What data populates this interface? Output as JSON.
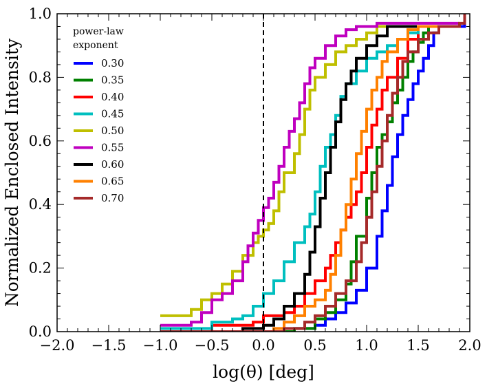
{
  "chart_data": {
    "type": "line",
    "title": "",
    "xlabel": "log(θ) [deg]",
    "ylabel": "Normalized Enclosed Intensity",
    "xlim": [
      -2.0,
      2.0
    ],
    "ylim": [
      0.0,
      1.0
    ],
    "xticks": [
      -2.0,
      -1.5,
      -1.0,
      -0.5,
      0.0,
      0.5,
      1.0,
      1.5,
      2.0
    ],
    "xtick_labels": [
      "−2.0",
      "−1.5",
      "−1.0",
      "−0.5",
      "0.0",
      "0.5",
      "1.0",
      "1.5",
      "2.0"
    ],
    "yticks": [
      0.0,
      0.2,
      0.4,
      0.6,
      0.8,
      1.0
    ],
    "ytick_labels": [
      "0.0",
      "0.2",
      "0.4",
      "0.6",
      "0.8",
      "1.0"
    ],
    "grid": false,
    "reference_line": {
      "x": 0.0,
      "style": "dashed",
      "color": "#000000"
    },
    "legend": {
      "title_lines": [
        "power-law",
        "exponent"
      ],
      "placement": "top-left"
    },
    "series": [
      {
        "name": "0.30",
        "color": "#0000ff",
        "points": [
          [
            -1.0,
            0.0
          ],
          [
            0.2,
            0.0
          ],
          [
            0.3,
            0.01
          ],
          [
            0.5,
            0.02
          ],
          [
            0.6,
            0.04
          ],
          [
            0.7,
            0.06
          ],
          [
            0.8,
            0.09
          ],
          [
            0.9,
            0.13
          ],
          [
            1.0,
            0.2
          ],
          [
            1.1,
            0.3
          ],
          [
            1.15,
            0.38
          ],
          [
            1.2,
            0.46
          ],
          [
            1.25,
            0.55
          ],
          [
            1.3,
            0.62
          ],
          [
            1.35,
            0.68
          ],
          [
            1.4,
            0.73
          ],
          [
            1.45,
            0.78
          ],
          [
            1.5,
            0.82
          ],
          [
            1.55,
            0.86
          ],
          [
            1.6,
            0.9
          ],
          [
            1.65,
            0.94
          ],
          [
            1.7,
            0.96
          ],
          [
            1.9,
            0.96
          ],
          [
            1.95,
            0.97
          ]
        ]
      },
      {
        "name": "0.35",
        "color": "#008000",
        "points": [
          [
            -1.0,
            0.0
          ],
          [
            0.1,
            0.0
          ],
          [
            0.3,
            0.01
          ],
          [
            0.5,
            0.04
          ],
          [
            0.6,
            0.06
          ],
          [
            0.7,
            0.1
          ],
          [
            0.8,
            0.15
          ],
          [
            0.85,
            0.22
          ],
          [
            0.9,
            0.3
          ],
          [
            1.0,
            0.42
          ],
          [
            1.05,
            0.5
          ],
          [
            1.1,
            0.58
          ],
          [
            1.15,
            0.62
          ],
          [
            1.2,
            0.66
          ],
          [
            1.25,
            0.72
          ],
          [
            1.3,
            0.76
          ],
          [
            1.35,
            0.8
          ],
          [
            1.4,
            0.85
          ],
          [
            1.45,
            0.88
          ],
          [
            1.5,
            0.91
          ],
          [
            1.55,
            0.94
          ],
          [
            1.6,
            0.96
          ],
          [
            1.9,
            0.96
          ]
        ]
      },
      {
        "name": "0.40",
        "color": "#ff0000",
        "points": [
          [
            -1.0,
            0.0
          ],
          [
            -0.6,
            0.0
          ],
          [
            -0.5,
            0.02
          ],
          [
            -0.3,
            0.02
          ],
          [
            -0.1,
            0.03
          ],
          [
            0.0,
            0.05
          ],
          [
            0.2,
            0.06
          ],
          [
            0.3,
            0.08
          ],
          [
            0.4,
            0.12
          ],
          [
            0.5,
            0.16
          ],
          [
            0.6,
            0.2
          ],
          [
            0.65,
            0.24
          ],
          [
            0.7,
            0.28
          ],
          [
            0.75,
            0.32
          ],
          [
            0.8,
            0.36
          ],
          [
            0.85,
            0.4
          ],
          [
            0.9,
            0.44
          ],
          [
            0.95,
            0.5
          ],
          [
            1.0,
            0.58
          ],
          [
            1.05,
            0.65
          ],
          [
            1.1,
            0.7
          ],
          [
            1.15,
            0.76
          ],
          [
            1.2,
            0.8
          ],
          [
            1.3,
            0.86
          ],
          [
            1.4,
            0.92
          ],
          [
            1.5,
            0.96
          ],
          [
            1.9,
            0.96
          ]
        ]
      },
      {
        "name": "0.45",
        "color": "#00bfbf",
        "points": [
          [
            -1.0,
            0.01
          ],
          [
            -0.7,
            0.01
          ],
          [
            -0.5,
            0.03
          ],
          [
            -0.3,
            0.04
          ],
          [
            -0.2,
            0.05
          ],
          [
            -0.1,
            0.08
          ],
          [
            0.0,
            0.12
          ],
          [
            0.1,
            0.16
          ],
          [
            0.2,
            0.22
          ],
          [
            0.3,
            0.28
          ],
          [
            0.4,
            0.33
          ],
          [
            0.45,
            0.37
          ],
          [
            0.5,
            0.44
          ],
          [
            0.55,
            0.52
          ],
          [
            0.6,
            0.58
          ],
          [
            0.65,
            0.62
          ],
          [
            0.7,
            0.68
          ],
          [
            0.75,
            0.74
          ],
          [
            0.8,
            0.78
          ],
          [
            0.9,
            0.82
          ],
          [
            1.0,
            0.86
          ],
          [
            1.1,
            0.88
          ],
          [
            1.2,
            0.9
          ],
          [
            1.3,
            0.92
          ],
          [
            1.4,
            0.94
          ],
          [
            1.5,
            0.96
          ],
          [
            1.9,
            0.96
          ]
        ]
      },
      {
        "name": "0.50",
        "color": "#bfbf00",
        "points": [
          [
            -1.0,
            0.05
          ],
          [
            -0.75,
            0.05
          ],
          [
            -0.7,
            0.07
          ],
          [
            -0.6,
            0.1
          ],
          [
            -0.5,
            0.12
          ],
          [
            -0.4,
            0.15
          ],
          [
            -0.3,
            0.19
          ],
          [
            -0.2,
            0.24
          ],
          [
            -0.1,
            0.28
          ],
          [
            -0.05,
            0.3
          ],
          [
            0.0,
            0.32
          ],
          [
            0.05,
            0.34
          ],
          [
            0.1,
            0.38
          ],
          [
            0.15,
            0.44
          ],
          [
            0.2,
            0.5
          ],
          [
            0.3,
            0.56
          ],
          [
            0.35,
            0.62
          ],
          [
            0.4,
            0.7
          ],
          [
            0.45,
            0.76
          ],
          [
            0.5,
            0.8
          ],
          [
            0.6,
            0.84
          ],
          [
            0.7,
            0.88
          ],
          [
            0.8,
            0.9
          ],
          [
            0.9,
            0.92
          ],
          [
            1.0,
            0.94
          ],
          [
            1.1,
            0.96
          ],
          [
            1.9,
            0.96
          ]
        ]
      },
      {
        "name": "0.55",
        "color": "#bf00bf",
        "points": [
          [
            -1.0,
            0.02
          ],
          [
            -0.7,
            0.03
          ],
          [
            -0.6,
            0.06
          ],
          [
            -0.5,
            0.1
          ],
          [
            -0.4,
            0.12
          ],
          [
            -0.3,
            0.16
          ],
          [
            -0.2,
            0.22
          ],
          [
            -0.15,
            0.27
          ],
          [
            -0.1,
            0.31
          ],
          [
            -0.05,
            0.35
          ],
          [
            0.0,
            0.39
          ],
          [
            0.05,
            0.42
          ],
          [
            0.1,
            0.47
          ],
          [
            0.15,
            0.52
          ],
          [
            0.2,
            0.58
          ],
          [
            0.25,
            0.63
          ],
          [
            0.3,
            0.67
          ],
          [
            0.35,
            0.72
          ],
          [
            0.4,
            0.78
          ],
          [
            0.45,
            0.83
          ],
          [
            0.5,
            0.86
          ],
          [
            0.6,
            0.9
          ],
          [
            0.7,
            0.93
          ],
          [
            0.8,
            0.95
          ],
          [
            0.9,
            0.96
          ],
          [
            1.1,
            0.97
          ],
          [
            1.9,
            0.97
          ]
        ]
      },
      {
        "name": "0.60",
        "color": "#000000",
        "points": [
          [
            -1.0,
            0.0
          ],
          [
            -0.3,
            0.0
          ],
          [
            -0.2,
            0.01
          ],
          [
            0.0,
            0.02
          ],
          [
            0.1,
            0.04
          ],
          [
            0.2,
            0.08
          ],
          [
            0.3,
            0.12
          ],
          [
            0.4,
            0.18
          ],
          [
            0.45,
            0.25
          ],
          [
            0.5,
            0.33
          ],
          [
            0.55,
            0.42
          ],
          [
            0.6,
            0.5
          ],
          [
            0.65,
            0.58
          ],
          [
            0.7,
            0.66
          ],
          [
            0.75,
            0.73
          ],
          [
            0.8,
            0.78
          ],
          [
            0.85,
            0.82
          ],
          [
            0.9,
            0.86
          ],
          [
            1.0,
            0.9
          ],
          [
            1.1,
            0.93
          ],
          [
            1.2,
            0.96
          ],
          [
            1.9,
            0.96
          ]
        ]
      },
      {
        "name": "0.65",
        "color": "#ff8000",
        "points": [
          [
            -1.0,
            0.0
          ],
          [
            0.0,
            0.0
          ],
          [
            0.1,
            0.01
          ],
          [
            0.2,
            0.03
          ],
          [
            0.3,
            0.05
          ],
          [
            0.4,
            0.08
          ],
          [
            0.5,
            0.1
          ],
          [
            0.6,
            0.13
          ],
          [
            0.65,
            0.18
          ],
          [
            0.7,
            0.24
          ],
          [
            0.75,
            0.32
          ],
          [
            0.8,
            0.4
          ],
          [
            0.85,
            0.48
          ],
          [
            0.9,
            0.56
          ],
          [
            0.95,
            0.63
          ],
          [
            1.0,
            0.7
          ],
          [
            1.05,
            0.76
          ],
          [
            1.1,
            0.8
          ],
          [
            1.15,
            0.85
          ],
          [
            1.2,
            0.88
          ],
          [
            1.3,
            0.92
          ],
          [
            1.4,
            0.95
          ],
          [
            1.5,
            0.96
          ],
          [
            1.9,
            0.96
          ]
        ]
      },
      {
        "name": "0.70",
        "color": "#a52a2a",
        "points": [
          [
            -1.0,
            0.0
          ],
          [
            0.0,
            0.0
          ],
          [
            0.2,
            0.01
          ],
          [
            0.4,
            0.03
          ],
          [
            0.5,
            0.05
          ],
          [
            0.6,
            0.08
          ],
          [
            0.7,
            0.12
          ],
          [
            0.8,
            0.16
          ],
          [
            0.9,
            0.22
          ],
          [
            0.95,
            0.28
          ],
          [
            1.0,
            0.36
          ],
          [
            1.05,
            0.44
          ],
          [
            1.1,
            0.52
          ],
          [
            1.15,
            0.6
          ],
          [
            1.2,
            0.68
          ],
          [
            1.25,
            0.75
          ],
          [
            1.3,
            0.8
          ],
          [
            1.35,
            0.85
          ],
          [
            1.4,
            0.88
          ],
          [
            1.5,
            0.92
          ],
          [
            1.6,
            0.94
          ],
          [
            1.7,
            0.96
          ],
          [
            1.9,
            0.97
          ],
          [
            1.95,
            1.0
          ]
        ]
      }
    ]
  }
}
